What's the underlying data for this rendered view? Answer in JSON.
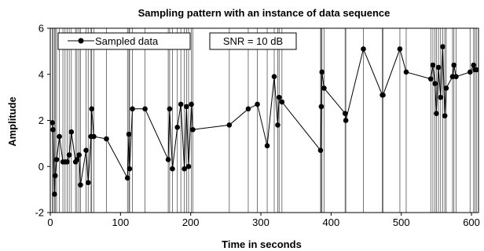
{
  "chart_data": {
    "type": "line",
    "title": "Sampling pattern with an instance of data sequence",
    "xlabel": "Time in seconds",
    "ylabel": "Amplitude",
    "xlim": [
      0,
      610
    ],
    "ylim": [
      -2,
      6
    ],
    "xticks": [
      0,
      100,
      200,
      300,
      400,
      500,
      600
    ],
    "yticks": [
      -2,
      0,
      2,
      4,
      6
    ],
    "grid": "vertical lines at each sample time",
    "legend": {
      "placement": "top-left",
      "entry": "Sampled data"
    },
    "annotation": "SNR = 10 dB",
    "series": [
      {
        "name": "Sampled data",
        "color": "#000000",
        "x": [
          3,
          4,
          6,
          7,
          9,
          13,
          18,
          21,
          24,
          27,
          30,
          36,
          38,
          41,
          43,
          51,
          54,
          58,
          59,
          62,
          80,
          110,
          112,
          113,
          117,
          135,
          168,
          170,
          174,
          181,
          186,
          191,
          194,
          197,
          201,
          203,
          255,
          282,
          295,
          309,
          319,
          324,
          326,
          330,
          385,
          386,
          387,
          390,
          420,
          421,
          446,
          473,
          474,
          498,
          507,
          542,
          545,
          548,
          550,
          553,
          556,
          559,
          562,
          564,
          573,
          575,
          578,
          598,
          603,
          605,
          607
        ],
        "y": [
          1.9,
          1.6,
          -1.2,
          -0.4,
          0.3,
          1.3,
          0.2,
          0.2,
          0.2,
          0.5,
          1.5,
          0.2,
          0.3,
          0.5,
          -0.8,
          0.7,
          -0.7,
          1.3,
          2.5,
          1.3,
          1.2,
          -0.5,
          1.4,
          -0.1,
          2.5,
          2.5,
          0.3,
          2.5,
          -0.1,
          1.7,
          2.7,
          -0.1,
          2.6,
          0.0,
          2.7,
          1.6,
          1.8,
          2.5,
          2.7,
          0.9,
          3.9,
          1.8,
          3.0,
          2.8,
          0.7,
          2.6,
          4.1,
          3.4,
          2.3,
          2.0,
          5.1,
          3.1,
          3.1,
          5.1,
          4.1,
          3.8,
          4.4,
          3.6,
          2.3,
          4.3,
          3.0,
          5.2,
          2.2,
          3.4,
          3.9,
          4.4,
          3.9,
          4.1,
          4.4,
          4.2,
          4.2
        ]
      }
    ]
  }
}
